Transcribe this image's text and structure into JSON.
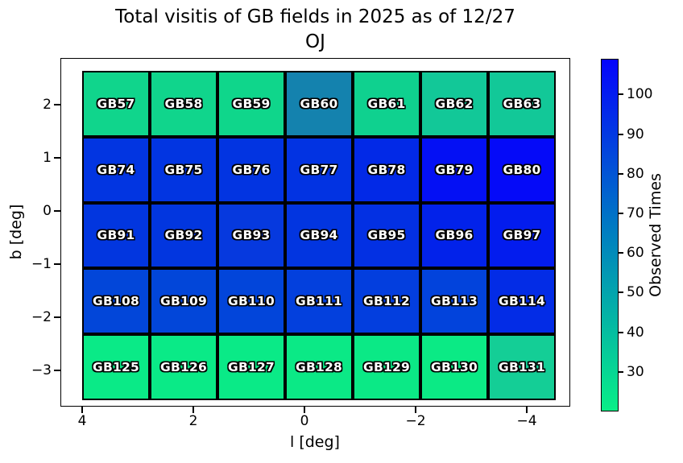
{
  "figure": {
    "title_line1": "Total visitis of GB fields in 2025 as of 12/27",
    "title_line2": "OJ"
  },
  "axes": {
    "xlabel": "l [deg]",
    "ylabel": "b [deg]"
  },
  "colorbar": {
    "label": "Observed Times"
  },
  "chart_data": {
    "type": "heatmap",
    "title": "Total visitis of GB fields in 2025 as of 12/27 OJ",
    "xlabel": "l [deg]",
    "ylabel": "b [deg]",
    "x_ticks": [
      4,
      2,
      0,
      -2,
      -4
    ],
    "y_ticks": [
      2,
      1,
      0,
      -1,
      -2,
      -3
    ],
    "x_axis_inverted": true,
    "xlim": [
      4.4,
      -4.7
    ],
    "ylim": [
      -3.7,
      2.9
    ],
    "grid_shape": {
      "rows": 5,
      "cols": 7
    },
    "colormap": "winter_r (green low -> blue high)",
    "colorbar": {
      "label": "Observed Times",
      "ticks": [
        100,
        90,
        80,
        70,
        60,
        50,
        40,
        30
      ],
      "vmin": 20,
      "vmax": 109,
      "top_color": "#0404fc",
      "mid_color": "#0080c0",
      "bottom_color": "#09ef87"
    },
    "values_are_estimated_from_color": true,
    "rows": [
      {
        "cells": [
          {
            "label": "GB57",
            "color": "#10d58c",
            "value_est": 33
          },
          {
            "label": "GB58",
            "color": "#10d58c",
            "value_est": 33
          },
          {
            "label": "GB59",
            "color": "#0fd68b",
            "value_est": 33
          },
          {
            "label": "GB60",
            "color": "#1482ae",
            "value_est": 60
          },
          {
            "label": "GB61",
            "color": "#0fd18f",
            "value_est": 35
          },
          {
            "label": "GB62",
            "color": "#12c898",
            "value_est": 39
          },
          {
            "label": "GB63",
            "color": "#12c898",
            "value_est": 39
          }
        ]
      },
      {
        "cells": [
          {
            "label": "GB74",
            "color": "#0235e1",
            "value_est": 90
          },
          {
            "label": "GB75",
            "color": "#0235e1",
            "value_est": 90
          },
          {
            "label": "GB76",
            "color": "#0234e1",
            "value_est": 90
          },
          {
            "label": "GB77",
            "color": "#0233e2",
            "value_est": 91
          },
          {
            "label": "GB78",
            "color": "#0229e7",
            "value_est": 94
          },
          {
            "label": "GB79",
            "color": "#0410f4",
            "value_est": 102
          },
          {
            "label": "GB80",
            "color": "#050af8",
            "value_est": 105
          }
        ]
      },
      {
        "cells": [
          {
            "label": "GB91",
            "color": "#0236df",
            "value_est": 89
          },
          {
            "label": "GB92",
            "color": "#0236df",
            "value_est": 89
          },
          {
            "label": "GB93",
            "color": "#0639de",
            "value_est": 88
          },
          {
            "label": "GB94",
            "color": "#0235e0",
            "value_est": 90
          },
          {
            "label": "GB95",
            "color": "#0330e3",
            "value_est": 92
          },
          {
            "label": "GB96",
            "color": "#0222ea",
            "value_est": 97
          },
          {
            "label": "GB97",
            "color": "#031cee",
            "value_est": 99
          }
        ]
      },
      {
        "cells": [
          {
            "label": "GB108",
            "color": "#0246d9",
            "value_est": 83
          },
          {
            "label": "GB109",
            "color": "#0246d9",
            "value_est": 83
          },
          {
            "label": "GB110",
            "color": "#0245da",
            "value_est": 83
          },
          {
            "label": "GB111",
            "color": "#0340dd",
            "value_est": 85
          },
          {
            "label": "GB112",
            "color": "#033ede",
            "value_est": 86
          },
          {
            "label": "GB113",
            "color": "#0243dc",
            "value_est": 84
          },
          {
            "label": "GB114",
            "color": "#032ce6",
            "value_est": 93
          }
        ]
      },
      {
        "cells": [
          {
            "label": "GB125",
            "color": "#0aea87",
            "value_est": 26
          },
          {
            "label": "GB126",
            "color": "#0aea87",
            "value_est": 26
          },
          {
            "label": "GB127",
            "color": "#0aea87",
            "value_est": 26
          },
          {
            "label": "GB128",
            "color": "#0be986",
            "value_est": 26
          },
          {
            "label": "GB129",
            "color": "#0be986",
            "value_est": 26
          },
          {
            "label": "GB130",
            "color": "#0bea85",
            "value_est": 26
          },
          {
            "label": "GB131",
            "color": "#14ce96",
            "value_est": 36
          }
        ]
      }
    ]
  }
}
